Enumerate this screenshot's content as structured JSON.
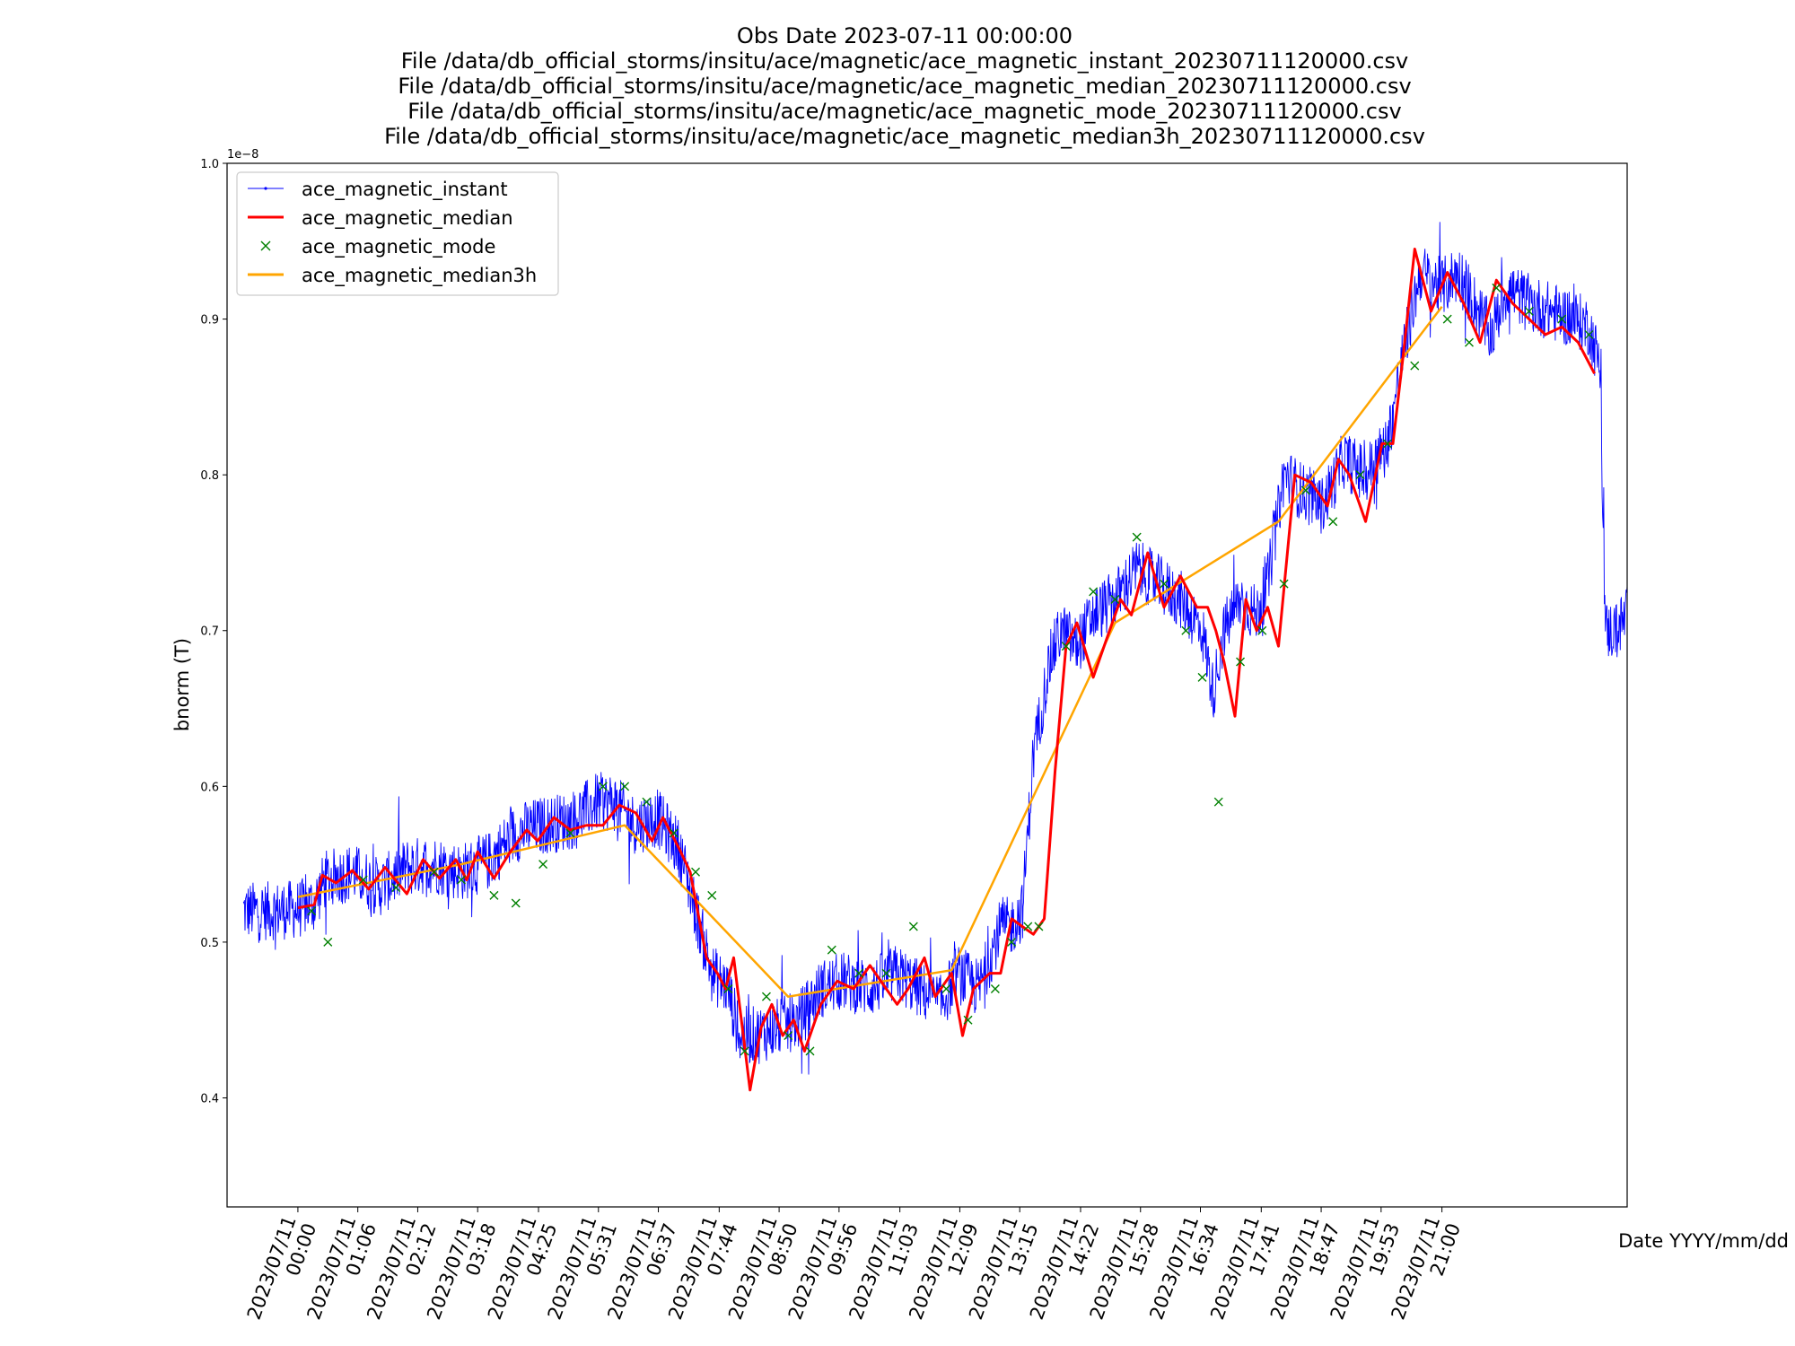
{
  "chart_data": {
    "type": "line",
    "title_lines": [
      "Obs Date 2023-07-11 00:00:00",
      "File /data/db_official_storms/insitu/ace/magnetic/ace_magnetic_instant_20230711120000.csv",
      "File /data/db_official_storms/insitu/ace/magnetic/ace_magnetic_median_20230711120000.csv",
      "File /data/db_official_storms/insitu/ace/magnetic/ace_magnetic_mode_20230711120000.csv",
      "File /data/db_official_storms/insitu/ace/magnetic/ace_magnetic_median3h_20230711120000.csv"
    ],
    "xlabel": "Date YYYY/mm/dd",
    "ylabel": "bnorm (T)",
    "y_offset_label": "1e−8",
    "y_scale": 1e-08,
    "ylim": [
      0.33,
      1.0
    ],
    "xlim_hours": [
      -1.3,
      24.4
    ],
    "yticks": [
      0.4,
      0.5,
      0.6,
      0.7,
      0.8,
      0.9,
      1.0
    ],
    "ytick_labels": [
      "0.4",
      "0.5",
      "0.6",
      "0.7",
      "0.8",
      "0.9",
      "1.0"
    ],
    "xticks_hours": [
      0,
      1.1,
      2.2,
      3.3,
      4.4167,
      5.5167,
      6.6167,
      7.7333,
      8.8333,
      9.9333,
      11.05,
      12.15,
      13.25,
      14.3667,
      15.4667,
      16.5667,
      17.6833,
      18.7833,
      19.8833,
      21.0
    ],
    "xtick_labels": [
      [
        "2023/07/11",
        "00:00"
      ],
      [
        "2023/07/11",
        "01:06"
      ],
      [
        "2023/07/11",
        "02:12"
      ],
      [
        "2023/07/11",
        "03:18"
      ],
      [
        "2023/07/11",
        "04:25"
      ],
      [
        "2023/07/11",
        "05:31"
      ],
      [
        "2023/07/11",
        "06:37"
      ],
      [
        "2023/07/11",
        "07:44"
      ],
      [
        "2023/07/11",
        "08:50"
      ],
      [
        "2023/07/11",
        "09:56"
      ],
      [
        "2023/07/11",
        "11:03"
      ],
      [
        "2023/07/11",
        "12:09"
      ],
      [
        "2023/07/11",
        "13:15"
      ],
      [
        "2023/07/11",
        "14:22"
      ],
      [
        "2023/07/11",
        "15:28"
      ],
      [
        "2023/07/11",
        "16:34"
      ],
      [
        "2023/07/11",
        "17:41"
      ],
      [
        "2023/07/11",
        "18:47"
      ],
      [
        "2023/07/11",
        "19:53"
      ],
      [
        "2023/07/11",
        "21:00"
      ]
    ],
    "legend_position": "upper-left",
    "series": [
      {
        "name": "ace_magnetic_instant",
        "style": "line-dot",
        "color": "#0000ff",
        "note": "High-frequency 1-min samples; rendered as envelope around this trace",
        "x_hours": [
          -1.0,
          -0.5,
          0.0,
          0.3,
          0.5,
          1.0,
          1.5,
          2.0,
          2.5,
          3.0,
          3.5,
          4.0,
          4.5,
          5.0,
          5.5,
          5.8,
          6.2,
          6.6,
          7.0,
          7.3,
          7.6,
          7.9,
          8.1,
          8.4,
          8.8,
          9.2,
          9.6,
          10.0,
          10.5,
          11.0,
          11.4,
          11.8,
          12.1,
          12.5,
          12.9,
          13.1,
          13.3,
          13.5,
          13.8,
          14.0,
          14.3,
          14.6,
          15.0,
          15.4,
          15.8,
          16.2,
          16.6,
          16.8,
          17.0,
          17.3,
          17.6,
          17.8,
          18.1,
          18.4,
          18.8,
          19.2,
          19.6,
          20.0,
          20.3,
          20.6,
          21.0,
          21.3,
          21.6,
          21.9,
          22.2,
          22.6,
          23.0,
          23.4,
          23.7,
          23.9,
          24.0,
          24.2,
          24.4
        ],
        "y": [
          0.52,
          0.52,
          0.521,
          0.525,
          0.54,
          0.545,
          0.535,
          0.548,
          0.55,
          0.545,
          0.552,
          0.57,
          0.575,
          0.578,
          0.59,
          0.59,
          0.575,
          0.58,
          0.56,
          0.52,
          0.48,
          0.47,
          0.44,
          0.44,
          0.445,
          0.45,
          0.47,
          0.475,
          0.47,
          0.48,
          0.47,
          0.46,
          0.48,
          0.47,
          0.51,
          0.51,
          0.52,
          0.62,
          0.68,
          0.7,
          0.69,
          0.71,
          0.72,
          0.74,
          0.73,
          0.72,
          0.7,
          0.66,
          0.7,
          0.72,
          0.71,
          0.73,
          0.8,
          0.79,
          0.78,
          0.81,
          0.8,
          0.82,
          0.88,
          0.93,
          0.92,
          0.93,
          0.91,
          0.89,
          0.92,
          0.91,
          0.905,
          0.9,
          0.895,
          0.87,
          0.7,
          0.7,
          0.71
        ],
        "noise_amplitude": 0.012
      },
      {
        "name": "ace_magnetic_median",
        "style": "line",
        "color": "#ff0000",
        "x_hours": [
          0.0,
          0.3,
          0.45,
          0.7,
          1.0,
          1.3,
          1.6,
          2.0,
          2.3,
          2.6,
          2.9,
          3.1,
          3.3,
          3.6,
          3.9,
          4.2,
          4.4,
          4.7,
          5.0,
          5.3,
          5.6,
          5.9,
          6.2,
          6.5,
          6.7,
          7.0,
          7.2,
          7.5,
          7.7,
          7.85,
          8.0,
          8.3,
          8.5,
          8.7,
          8.9,
          9.1,
          9.3,
          9.6,
          9.9,
          10.2,
          10.5,
          10.8,
          11.0,
          11.2,
          11.5,
          11.7,
          12.0,
          12.2,
          12.4,
          12.7,
          12.9,
          13.1,
          13.3,
          13.5,
          13.7,
          13.9,
          14.1,
          14.3,
          14.6,
          14.9,
          15.1,
          15.3,
          15.6,
          15.9,
          16.2,
          16.5,
          16.7,
          16.85,
          17.0,
          17.2,
          17.4,
          17.6,
          17.8,
          18.0,
          18.3,
          18.6,
          18.9,
          19.1,
          19.3,
          19.6,
          19.9,
          20.1,
          20.3,
          20.5,
          20.8,
          21.1,
          21.4,
          21.7,
          22.0,
          22.3,
          22.6,
          22.9,
          23.2,
          23.5,
          23.8
        ],
        "y": [
          0.522,
          0.524,
          0.543,
          0.538,
          0.546,
          0.534,
          0.548,
          0.531,
          0.553,
          0.541,
          0.553,
          0.54,
          0.558,
          0.541,
          0.558,
          0.572,
          0.565,
          0.58,
          0.572,
          0.575,
          0.575,
          0.588,
          0.583,
          0.565,
          0.58,
          0.56,
          0.545,
          0.49,
          0.48,
          0.47,
          0.49,
          0.405,
          0.445,
          0.46,
          0.44,
          0.45,
          0.43,
          0.46,
          0.475,
          0.47,
          0.485,
          0.47,
          0.46,
          0.47,
          0.49,
          0.465,
          0.48,
          0.44,
          0.47,
          0.48,
          0.48,
          0.515,
          0.51,
          0.505,
          0.515,
          0.61,
          0.69,
          0.705,
          0.67,
          0.7,
          0.72,
          0.71,
          0.75,
          0.715,
          0.735,
          0.715,
          0.715,
          0.7,
          0.68,
          0.645,
          0.72,
          0.7,
          0.715,
          0.69,
          0.8,
          0.795,
          0.78,
          0.81,
          0.8,
          0.77,
          0.82,
          0.82,
          0.88,
          0.945,
          0.905,
          0.93,
          0.91,
          0.885,
          0.925,
          0.91,
          0.9,
          0.89,
          0.895,
          0.885,
          0.865
        ],
        "y_note": "values in units of 1e-8 T"
      },
      {
        "name": "ace_magnetic_mode",
        "style": "x-marker",
        "color": "#008000",
        "x_hours": [
          0.25,
          0.55,
          1.2,
          1.8,
          2.5,
          3.0,
          3.6,
          4.0,
          4.5,
          5.0,
          5.6,
          6.0,
          6.4,
          6.9,
          7.3,
          7.6,
          7.9,
          8.2,
          8.6,
          9.0,
          9.4,
          9.8,
          10.3,
          10.8,
          11.3,
          11.9,
          12.3,
          12.8,
          13.1,
          13.4,
          13.6,
          14.1,
          14.6,
          15.0,
          15.4,
          15.9,
          16.3,
          16.6,
          16.9,
          17.3,
          17.7,
          18.1,
          18.5,
          19.0,
          19.5,
          20.0,
          20.5,
          21.1,
          21.5,
          22.0,
          22.6,
          23.2,
          23.7
        ],
        "y": [
          0.52,
          0.5,
          0.54,
          0.535,
          0.545,
          0.54,
          0.53,
          0.525,
          0.55,
          0.57,
          0.6,
          0.6,
          0.59,
          0.57,
          0.545,
          0.53,
          0.47,
          0.43,
          0.465,
          0.44,
          0.43,
          0.495,
          0.48,
          0.48,
          0.51,
          0.47,
          0.45,
          0.47,
          0.5,
          0.51,
          0.51,
          0.69,
          0.725,
          0.72,
          0.76,
          0.73,
          0.7,
          0.67,
          0.59,
          0.68,
          0.7,
          0.73,
          0.79,
          0.77,
          0.8,
          0.82,
          0.87,
          0.9,
          0.885,
          0.92,
          0.905,
          0.9,
          0.89
        ],
        "y_note": "values in units of 1e-8 T"
      },
      {
        "name": "ace_magnetic_median3h",
        "style": "line",
        "color": "#ffa500",
        "x_hours": [
          0.0,
          3.0,
          6.0,
          9.0,
          12.0,
          15.0,
          18.0,
          21.0
        ],
        "y": [
          0.529,
          0.55,
          0.575,
          0.465,
          0.482,
          0.705,
          0.77,
          0.908
        ],
        "y_note": "values in units of 1e-8 T"
      }
    ]
  }
}
